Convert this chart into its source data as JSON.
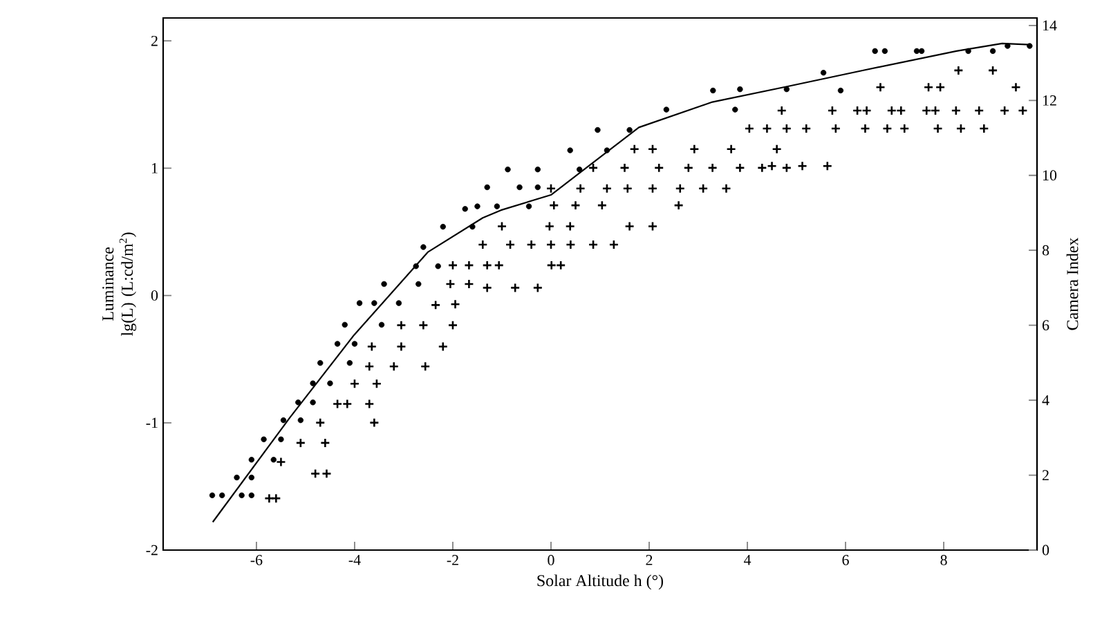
{
  "chart_data": {
    "type": "scatter",
    "xlabel": "Solar Altitude h (°)",
    "ylabel": "Luminance lg(L) (L:cd/m$^{2}$)",
    "y2label": "Camera Index",
    "xlim": [
      -7.9,
      9.9
    ],
    "ylim": [
      -2,
      2.18
    ],
    "y2lim": [
      0,
      14.2
    ],
    "xticks": [
      -6,
      -4,
      -2,
      0,
      2,
      4,
      6,
      8
    ],
    "yticks": [
      -2,
      -1,
      0,
      1,
      2
    ],
    "y2ticks": [
      0,
      2,
      4,
      6,
      8,
      10,
      12,
      14
    ],
    "series": [
      {
        "marker": "circle",
        "color": "#000000",
        "x": [
          -6.9,
          -6.7,
          -6.3,
          -6.1,
          -6.4,
          -6.1,
          -6.1,
          -5.65,
          -5.85,
          -5.5,
          -5.45,
          -5.1,
          -5.15,
          -4.85,
          -4.85,
          -4.5,
          -4.7,
          -4.1,
          -4.35,
          -4.0,
          -4.2,
          -3.45,
          -3.9,
          -3.6,
          -3.1,
          -3.4,
          -2.7,
          -2.75,
          -2.3,
          -2.6,
          -2.2,
          -1.6,
          -1.75,
          -1.5,
          -1.1,
          -0.45,
          -1.3,
          -0.64,
          -0.27,
          -0.88,
          -0.27,
          0.58,
          0.39,
          1.14,
          0.95,
          1.6,
          2.35,
          3.75,
          3.3,
          3.85,
          4.8,
          5.9,
          5.55,
          6.6,
          6.8,
          7.45,
          7.55,
          8.5,
          9.0,
          9.3,
          9.75
        ],
        "values": [
          -1.57,
          -1.57,
          -1.57,
          -1.57,
          -1.43,
          -1.43,
          -1.29,
          -1.29,
          -1.13,
          -1.13,
          -0.98,
          -0.98,
          -0.84,
          -0.84,
          -0.69,
          -0.69,
          -0.53,
          -0.53,
          -0.38,
          -0.38,
          -0.23,
          -0.23,
          -0.06,
          -0.06,
          -0.06,
          0.09,
          0.09,
          0.23,
          0.23,
          0.38,
          0.54,
          0.54,
          0.68,
          0.7,
          0.7,
          0.7,
          0.85,
          0.85,
          0.85,
          0.99,
          0.99,
          0.99,
          1.14,
          1.14,
          1.3,
          1.3,
          1.46,
          1.46,
          1.61,
          1.62,
          1.62,
          1.61,
          1.75,
          1.92,
          1.92,
          1.92,
          1.92,
          1.92,
          1.92,
          1.96,
          1.96
        ]
      },
      {
        "marker": "cross",
        "axis": "y2",
        "color": "#000000",
        "x": [
          -5.74,
          -5.6,
          -4.8,
          -4.57,
          -5.5,
          -5.1,
          -4.6,
          -4.7,
          -3.6,
          -4.35,
          -4.15,
          -3.7,
          -4.0,
          -3.55,
          -3.7,
          -3.2,
          -2.56,
          -3.65,
          -3.05,
          -2.2,
          -3.05,
          -2.6,
          -2.0,
          -2.35,
          -1.95,
          -2.05,
          -1.67,
          -1.3,
          -0.73,
          -0.27,
          -2.0,
          -1.67,
          -1.3,
          -1.06,
          0.01,
          0.2,
          -1.39,
          -0.83,
          -0.4,
          0.0,
          0.4,
          0.86,
          1.28,
          -1.0,
          -0.03,
          0.39,
          1.6,
          2.07,
          0.06,
          0.5,
          1.04,
          2.6,
          0.0,
          0.6,
          1.14,
          1.56,
          2.07,
          2.63,
          3.1,
          3.57,
          0.86,
          1.5,
          2.2,
          2.8,
          3.29,
          3.85,
          4.3,
          4.8,
          4.5,
          5.12,
          5.63,
          1.7,
          2.07,
          2.92,
          3.67,
          4.6,
          4.04,
          4.4,
          4.8,
          5.2,
          5.8,
          6.4,
          6.85,
          7.2,
          7.88,
          8.35,
          8.82,
          4.7,
          5.73,
          6.24,
          6.43,
          6.94,
          7.13,
          7.65,
          7.83,
          8.25,
          8.72,
          9.24,
          9.61,
          6.71,
          7.69,
          7.93,
          9.47,
          8.3,
          9.0
        ],
        "values": [
          1.38,
          1.38,
          2.04,
          2.04,
          2.35,
          2.86,
          2.86,
          3.4,
          3.4,
          3.9,
          3.9,
          3.9,
          4.44,
          4.44,
          4.9,
          4.9,
          4.9,
          5.43,
          5.43,
          5.43,
          6.0,
          6.0,
          6.0,
          6.54,
          6.56,
          7.1,
          7.1,
          7.0,
          7.0,
          7.0,
          7.6,
          7.6,
          7.6,
          7.6,
          7.6,
          7.6,
          8.15,
          8.15,
          8.15,
          8.15,
          8.15,
          8.15,
          8.15,
          8.64,
          8.64,
          8.64,
          8.64,
          8.64,
          9.2,
          9.2,
          9.2,
          9.2,
          9.65,
          9.65,
          9.65,
          9.65,
          9.65,
          9.65,
          9.65,
          9.65,
          10.2,
          10.2,
          10.2,
          10.2,
          10.2,
          10.2,
          10.2,
          10.2,
          10.25,
          10.25,
          10.25,
          10.7,
          10.7,
          10.7,
          10.7,
          10.7,
          11.25,
          11.25,
          11.25,
          11.25,
          11.25,
          11.25,
          11.25,
          11.25,
          11.25,
          11.25,
          11.25,
          11.73,
          11.73,
          11.73,
          11.73,
          11.73,
          11.73,
          11.73,
          11.73,
          11.73,
          11.73,
          11.73,
          11.73,
          12.35,
          12.35,
          12.35,
          12.35,
          12.8,
          12.8
        ]
      },
      {
        "type": "line",
        "marker": "none",
        "line_style": "solid",
        "color": "#000000",
        "x": [
          -6.89,
          -5.32,
          -4.01,
          -2.51,
          -1.39,
          -1.02,
          0,
          1.79,
          3.29,
          4.79,
          6.38,
          8.26,
          9.19,
          9.75
        ],
        "values": [
          -1.78,
          -0.96,
          -0.31,
          0.34,
          0.61,
          0.67,
          0.79,
          1.32,
          1.52,
          1.64,
          1.77,
          1.92,
          1.98,
          1.97
        ]
      }
    ]
  }
}
